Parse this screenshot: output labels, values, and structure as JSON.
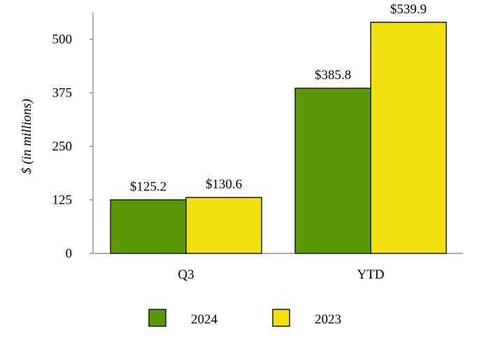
{
  "chart_data": {
    "type": "bar",
    "title": "",
    "xlabel": "",
    "ylabel": "$ (in millions)",
    "categories": [
      "Q3",
      "YTD"
    ],
    "series": [
      {
        "name": "2024",
        "color": "#5a9a08",
        "values": [
          125.2,
          385.8
        ],
        "labels": [
          "$125.2",
          "$385.8"
        ]
      },
      {
        "name": "2023",
        "color": "#f0e010",
        "values": [
          130.6,
          539.9
        ],
        "labels": [
          "$130.6",
          "$539.9"
        ]
      }
    ],
    "ylim": [
      0,
      562.5
    ],
    "yticks": [
      0,
      125,
      250,
      375,
      500
    ],
    "ytick_labels": [
      "0",
      "125",
      "250",
      "375",
      "500"
    ],
    "grid": false,
    "legend_position": "bottom"
  }
}
